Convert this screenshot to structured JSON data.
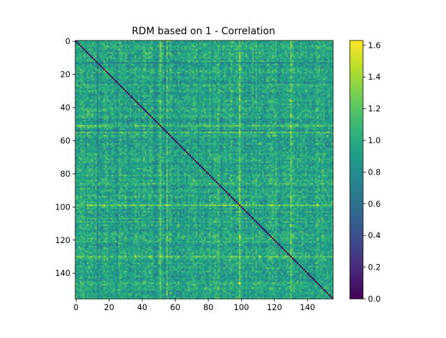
{
  "chart_data": {
    "type": "heatmap",
    "title": "RDM based on 1 - Correlation",
    "xlabel": "",
    "ylabel": "",
    "n": 156,
    "x_ticks": [
      0,
      20,
      40,
      60,
      80,
      100,
      120,
      140
    ],
    "y_ticks": [
      0,
      20,
      40,
      60,
      80,
      100,
      120,
      140
    ],
    "x_tick_labels": [
      "0",
      "20",
      "40",
      "60",
      "80",
      "100",
      "120",
      "140"
    ],
    "y_tick_labels": [
      "0",
      "20",
      "40",
      "60",
      "80",
      "100",
      "120",
      "140"
    ],
    "colormap": "viridis",
    "vmin": 0.0,
    "vmax": 1.63,
    "colorbar_ticks": [
      0.0,
      0.2,
      0.4,
      0.6,
      0.8,
      1.0,
      1.2,
      1.4,
      1.6
    ],
    "colorbar_tick_labels": [
      "0.0",
      "0.2",
      "0.4",
      "0.6",
      "0.8",
      "1.0",
      "1.2",
      "1.4",
      "1.6"
    ],
    "diagonal_value": 0.0,
    "typical_offdiagonal_value": 0.95,
    "highlighted_rows": [
      51,
      55,
      86,
      99,
      130
    ],
    "lower_columns": [
      13,
      25,
      48,
      54,
      88
    ]
  }
}
